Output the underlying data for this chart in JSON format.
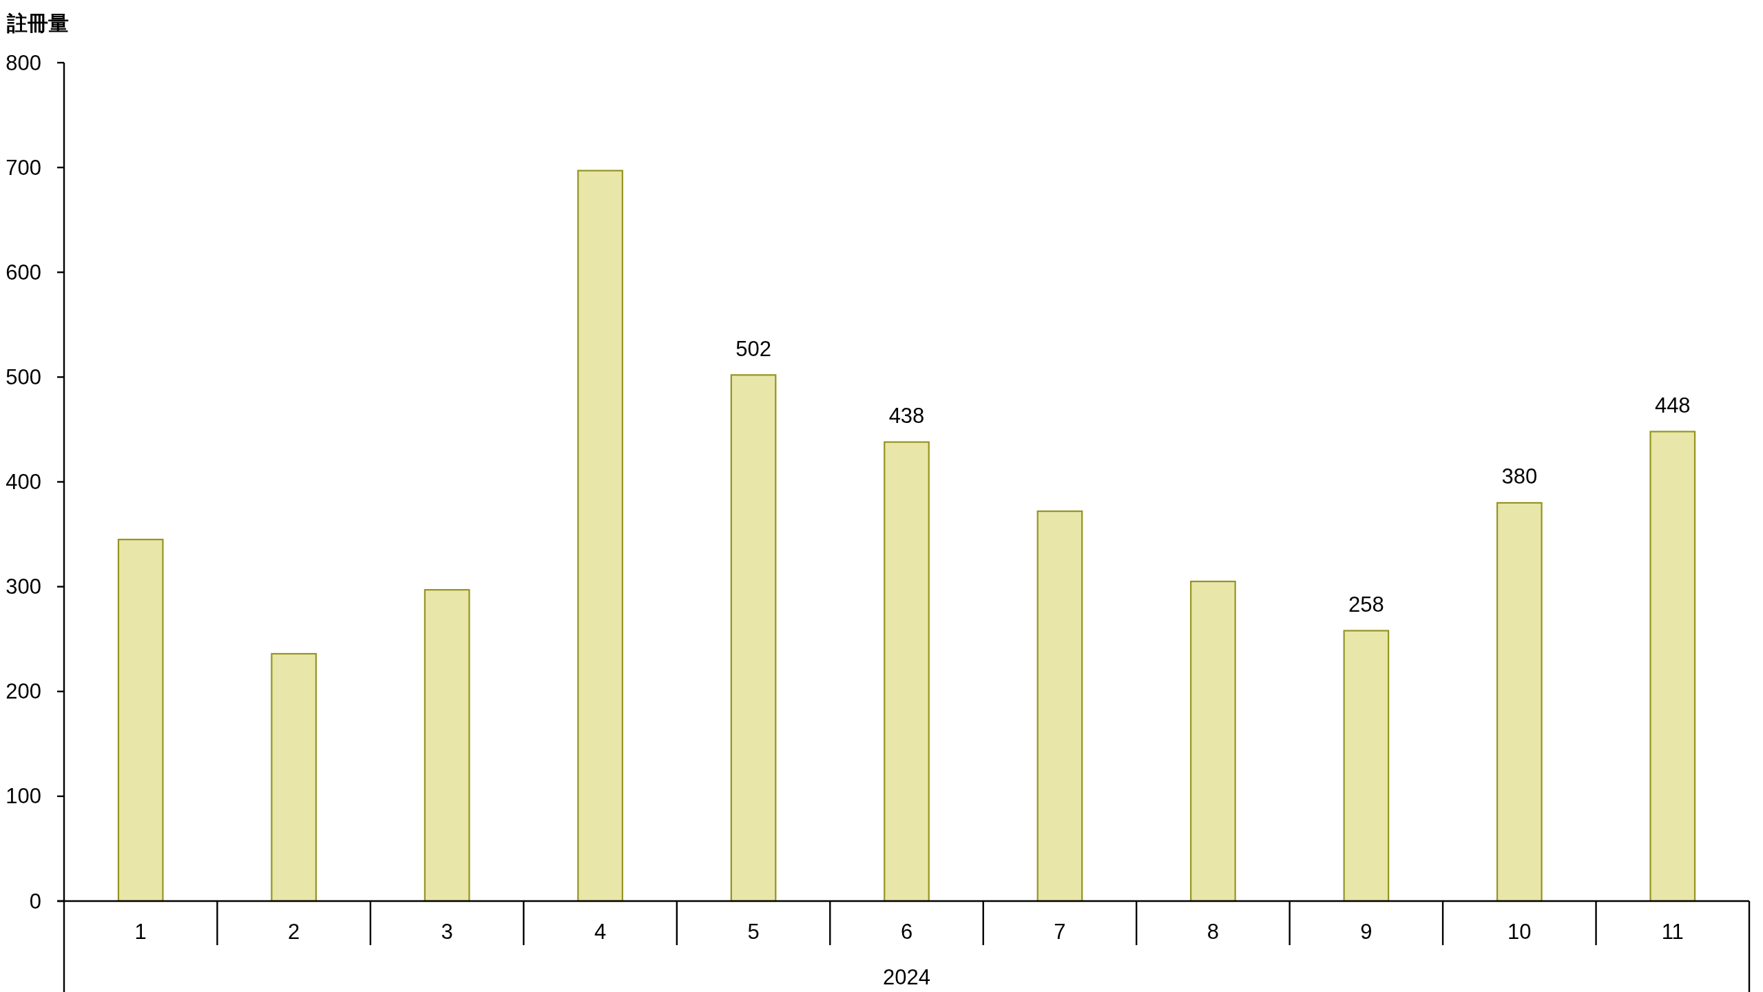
{
  "chart_data": {
    "type": "bar",
    "ylabel": "註冊量",
    "xlabel": "2024",
    "categories": [
      "1",
      "2",
      "3",
      "4",
      "5",
      "6",
      "7",
      "8",
      "9",
      "10",
      "11"
    ],
    "values": [
      345,
      236,
      297,
      697,
      502,
      438,
      372,
      305,
      258,
      380,
      448
    ],
    "value_labels": [
      null,
      null,
      null,
      null,
      "502",
      "438",
      null,
      null,
      "258",
      "380",
      "448"
    ],
    "color": "#e8e6a8",
    "ylim": [
      0,
      800
    ],
    "yticks": [
      0,
      100,
      200,
      300,
      400,
      500,
      600,
      700,
      800
    ]
  }
}
